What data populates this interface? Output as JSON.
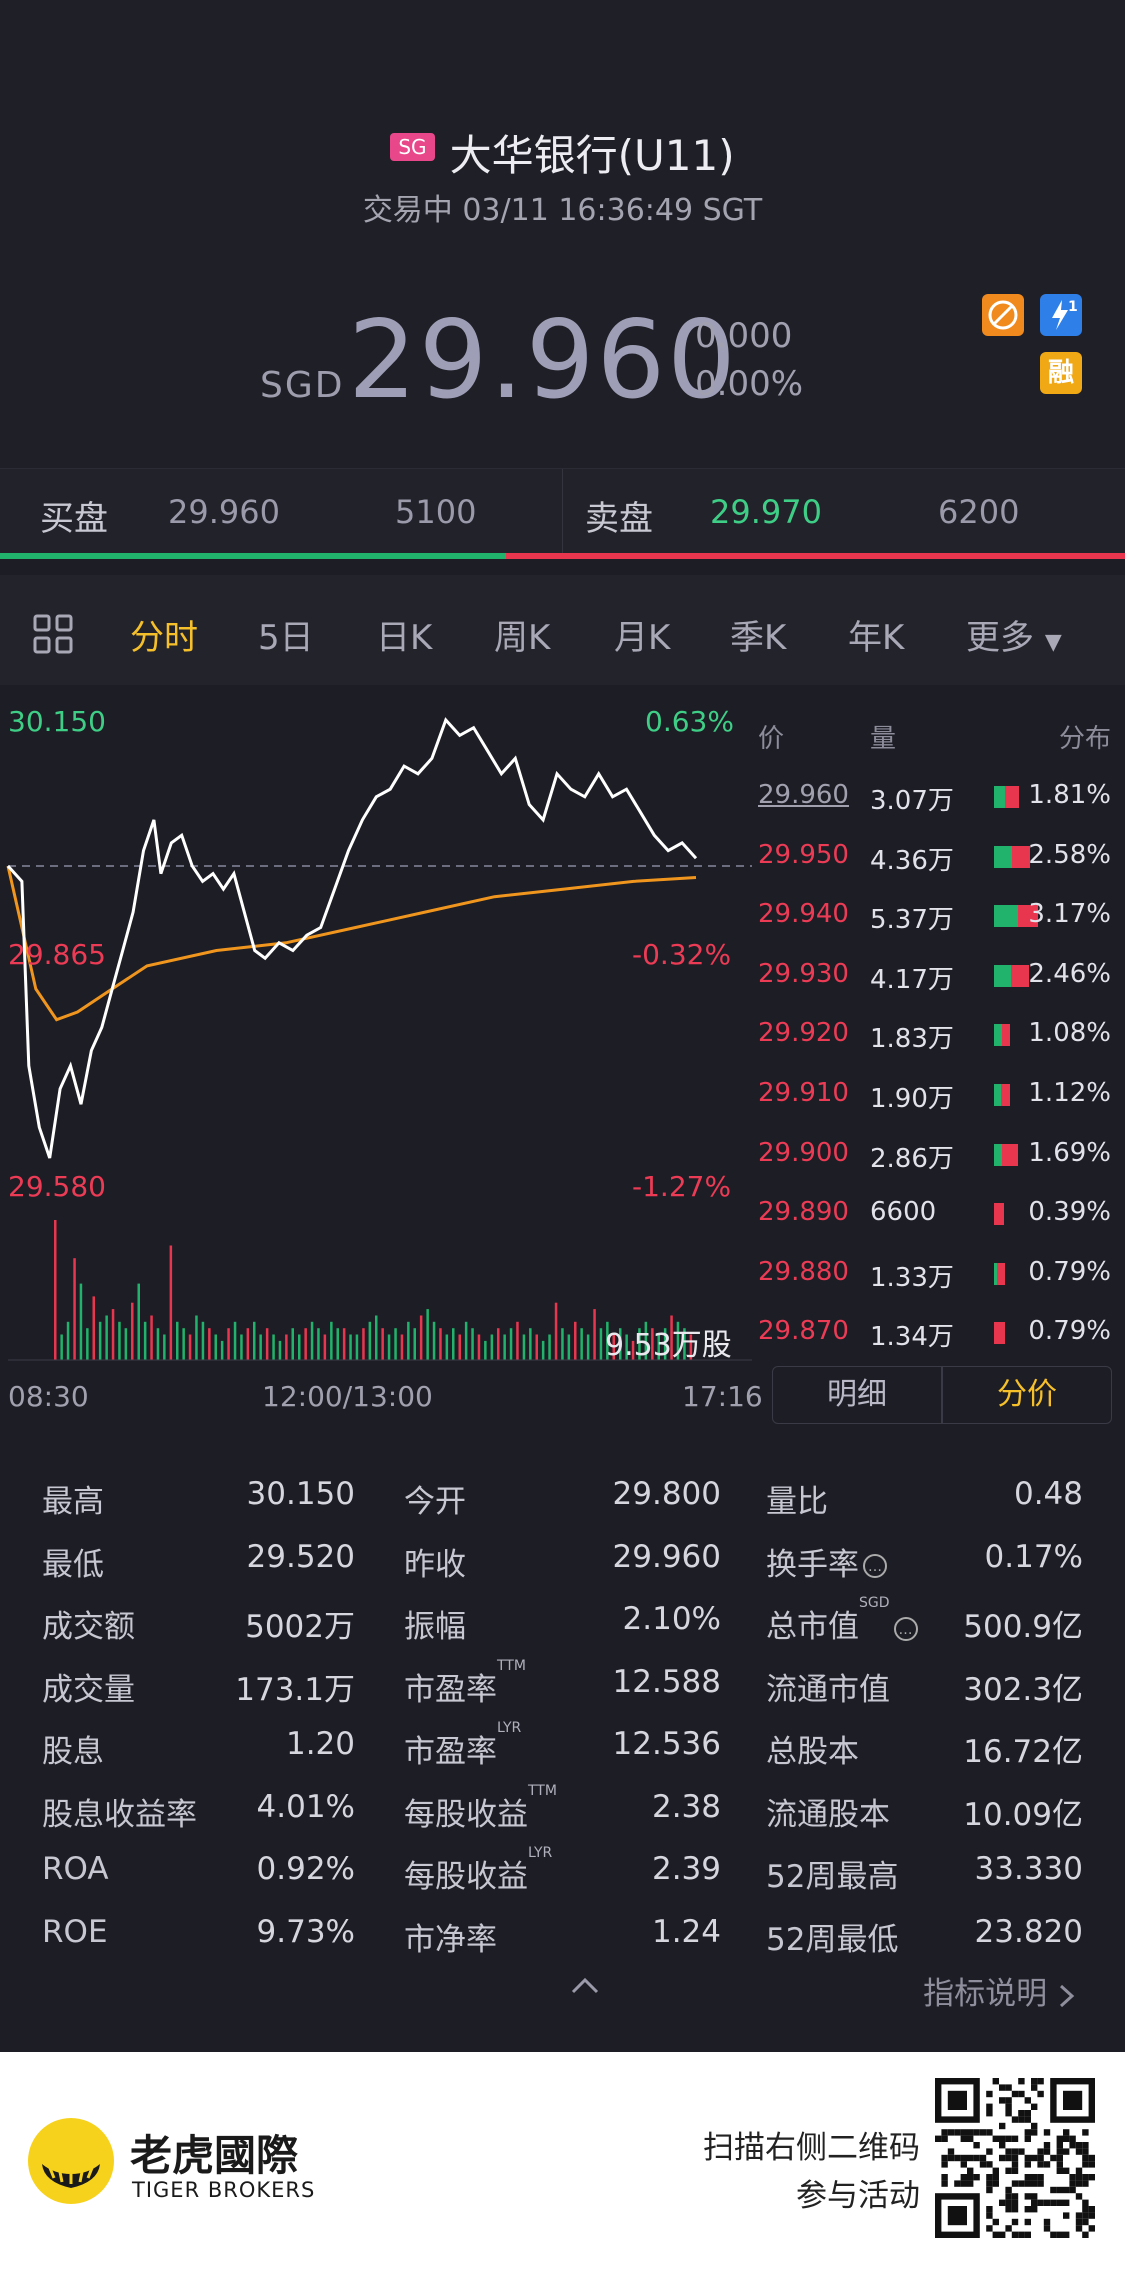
{
  "header": {
    "market_badge": "SG",
    "title": "大华银行(U11)",
    "status_line": "交易中 03/11 16:36:49 SGT",
    "currency": "SGD",
    "price": "29.960",
    "change": "0.000",
    "change_pct": "0.00%",
    "icon_margin": "融",
    "icon_flash_num": "1"
  },
  "bidask": {
    "bid_label": "买盘",
    "bid_price": "29.960",
    "bid_vol": "5100",
    "ask_label": "卖盘",
    "ask_price": "29.970",
    "ask_vol": "6200"
  },
  "tabs": [
    "分时",
    "5日",
    "日K",
    "周K",
    "月K",
    "季K",
    "年K",
    "更多"
  ],
  "active_tab": "分时",
  "chart_labels": {
    "high_price": "30.150",
    "high_pct": "0.63%",
    "mid_price": "29.865",
    "mid_pct": "-0.32%",
    "low_price": "29.580",
    "low_pct": "-1.27%",
    "volume": "9.53万股",
    "t_start": "08:30",
    "t_mid": "12:00/13:00",
    "t_end": "17:16"
  },
  "colors": {
    "accent": "#f5c02a",
    "up": "#21b36b",
    "down": "#ec3b55",
    "avg_line": "#f0961e"
  },
  "chart_data": {
    "type": "line",
    "series": [
      {
        "name": "price",
        "points": [
          [
            0,
            29.96
          ],
          [
            4,
            29.94
          ],
          [
            6,
            29.7
          ],
          [
            9,
            29.62
          ],
          [
            12,
            29.58
          ],
          [
            15,
            29.67
          ],
          [
            18,
            29.7
          ],
          [
            21,
            29.65
          ],
          [
            24,
            29.72
          ],
          [
            27,
            29.75
          ],
          [
            30,
            29.8
          ],
          [
            33,
            29.85
          ],
          [
            36,
            29.9
          ],
          [
            39,
            29.98
          ],
          [
            42,
            30.02
          ],
          [
            44,
            29.95
          ],
          [
            47,
            29.99
          ],
          [
            50,
            30.0
          ],
          [
            53,
            29.96
          ],
          [
            56,
            29.94
          ],
          [
            59,
            29.95
          ],
          [
            62,
            29.93
          ],
          [
            65,
            29.95
          ],
          [
            68,
            29.9
          ],
          [
            71,
            29.85
          ],
          [
            74,
            29.84
          ],
          [
            78,
            29.86
          ],
          [
            82,
            29.85
          ],
          [
            86,
            29.87
          ],
          [
            90,
            29.88
          ],
          [
            94,
            29.93
          ],
          [
            98,
            29.98
          ],
          [
            102,
            30.02
          ],
          [
            106,
            30.05
          ],
          [
            110,
            30.06
          ],
          [
            114,
            30.09
          ],
          [
            118,
            30.08
          ],
          [
            122,
            30.1
          ],
          [
            126,
            30.15
          ],
          [
            130,
            30.13
          ],
          [
            134,
            30.14
          ],
          [
            138,
            30.11
          ],
          [
            142,
            30.08
          ],
          [
            146,
            30.1
          ],
          [
            150,
            30.04
          ],
          [
            154,
            30.02
          ],
          [
            158,
            30.08
          ],
          [
            162,
            30.06
          ],
          [
            166,
            30.05
          ],
          [
            170,
            30.08
          ],
          [
            174,
            30.05
          ],
          [
            178,
            30.06
          ],
          [
            182,
            30.03
          ],
          [
            186,
            30.0
          ],
          [
            190,
            29.98
          ],
          [
            194,
            29.99
          ],
          [
            198,
            29.97
          ]
        ]
      },
      {
        "name": "avg",
        "points": [
          [
            0,
            29.96
          ],
          [
            8,
            29.8
          ],
          [
            14,
            29.76
          ],
          [
            20,
            29.77
          ],
          [
            30,
            29.8
          ],
          [
            40,
            29.83
          ],
          [
            60,
            29.85
          ],
          [
            80,
            29.86
          ],
          [
            100,
            29.88
          ],
          [
            120,
            29.9
          ],
          [
            140,
            29.92
          ],
          [
            160,
            29.93
          ],
          [
            180,
            29.94
          ],
          [
            198,
            29.945
          ]
        ]
      }
    ],
    "ylim": [
      29.58,
      30.15
    ],
    "prev_close": 29.96,
    "xlim": [
      0,
      198
    ],
    "volume_bars": [
      22,
      4,
      6,
      16,
      12,
      5,
      10,
      6,
      7,
      8,
      6,
      5,
      9,
      12,
      6,
      7,
      5,
      4,
      18,
      6,
      5,
      4,
      7,
      6,
      5,
      4,
      3,
      5,
      6,
      4,
      5,
      6,
      4,
      5,
      4,
      3,
      4,
      5,
      4,
      5,
      6,
      5,
      4,
      6,
      5,
      5,
      4,
      4,
      5,
      6,
      7,
      5,
      4,
      5,
      4,
      6,
      5,
      7,
      8,
      6,
      5,
      4,
      5,
      4,
      6,
      5,
      4,
      3,
      4,
      5,
      4,
      5,
      6,
      4,
      5,
      4,
      3,
      4,
      9,
      5,
      4,
      6,
      5,
      4,
      8,
      5,
      6,
      4,
      5,
      4,
      3,
      5,
      6,
      5,
      4,
      5,
      7,
      6,
      5,
      4
    ]
  },
  "orderbook": {
    "headers": [
      "价",
      "量",
      "分布"
    ],
    "rows": [
      {
        "price": "29.960",
        "vol": "3.07万",
        "pct": "1.81%",
        "g": 0.45,
        "r": 0.55
      },
      {
        "price": "29.950",
        "vol": "4.36万",
        "pct": "2.58%",
        "g": 0.5,
        "r": 0.5
      },
      {
        "price": "29.940",
        "vol": "5.37万",
        "pct": "3.17%",
        "g": 0.55,
        "r": 0.45
      },
      {
        "price": "29.930",
        "vol": "4.17万",
        "pct": "2.46%",
        "g": 0.5,
        "r": 0.5
      },
      {
        "price": "29.920",
        "vol": "1.83万",
        "pct": "1.08%",
        "g": 0.5,
        "r": 0.5
      },
      {
        "price": "29.910",
        "vol": "1.90万",
        "pct": "1.12%",
        "g": 0.45,
        "r": 0.55
      },
      {
        "price": "29.900",
        "vol": "2.86万",
        "pct": "1.69%",
        "g": 0.35,
        "r": 0.65
      },
      {
        "price": "29.890",
        "vol": "6600",
        "pct": "0.39%",
        "g": 0.0,
        "r": 1.0
      },
      {
        "price": "29.880",
        "vol": "1.33万",
        "pct": "0.79%",
        "g": 0.3,
        "r": 0.7
      },
      {
        "price": "29.870",
        "vol": "1.34万",
        "pct": "0.79%",
        "g": 0.0,
        "r": 1.0
      }
    ],
    "bar_fill": [
      0.42,
      0.6,
      0.74,
      0.58,
      0.26,
      0.27,
      0.4,
      0.09,
      0.19,
      0.19
    ],
    "toggle_detail": "明细",
    "toggle_price": "分价"
  },
  "stats": {
    "col1": [
      {
        "k": "最高",
        "v": "30.150"
      },
      {
        "k": "最低",
        "v": "29.520"
      },
      {
        "k": "成交额",
        "v": "5002万"
      },
      {
        "k": "成交量",
        "v": "173.1万"
      },
      {
        "k": "股息",
        "v": "1.20"
      },
      {
        "k": "股息收益率",
        "v": "4.01%"
      },
      {
        "k": "ROA",
        "v": "0.92%"
      },
      {
        "k": "ROE",
        "v": "9.73%"
      }
    ],
    "col2": [
      {
        "k": "今开",
        "v": "29.800"
      },
      {
        "k": "昨收",
        "v": "29.960"
      },
      {
        "k": "振幅",
        "v": "2.10%"
      },
      {
        "k": "市盈率",
        "v": "12.588",
        "tag": "TTM"
      },
      {
        "k": "市盈率",
        "v": "12.536",
        "tag": "LYR"
      },
      {
        "k": "每股收益",
        "v": "2.38",
        "tag": "TTM"
      },
      {
        "k": "每股收益",
        "v": "2.39",
        "tag": "LYR"
      },
      {
        "k": "市净率",
        "v": "1.24"
      }
    ],
    "col3": [
      {
        "k": "量比",
        "v": "0.48"
      },
      {
        "k": "换手率",
        "v": "0.17%"
      },
      {
        "k": "总市值",
        "v": "500.9亿",
        "tag": "SGD"
      },
      {
        "k": "流通市值",
        "v": "302.3亿"
      },
      {
        "k": "总股本",
        "v": "16.72亿"
      },
      {
        "k": "流通股本",
        "v": "10.09亿"
      },
      {
        "k": "52周最高",
        "v": "33.330"
      },
      {
        "k": "52周最低",
        "v": "23.820"
      }
    ],
    "info_mark": "…",
    "explain_link": "指标说明"
  },
  "footer": {
    "brand_cn": "老虎國際",
    "brand_en": "TIGER BROKERS",
    "scan_line1": "扫描右侧二维码",
    "scan_line2": "参与活动"
  }
}
